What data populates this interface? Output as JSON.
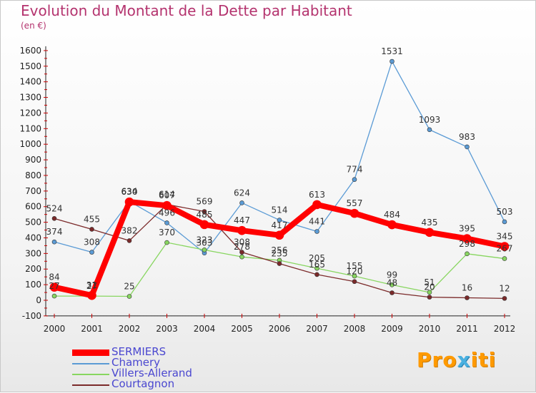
{
  "title": "Evolution du Montant de la Dette par Habitant",
  "subtitle": "(en €)",
  "logo": {
    "part1": "Pro",
    "x": "x",
    "part2": "iti"
  },
  "chart_data": {
    "type": "line",
    "title": "Evolution du Montant de la Dette par Habitant",
    "ylabel": "(en €)",
    "xlabel": "",
    "categories": [
      "2000",
      "2001",
      "2002",
      "2003",
      "2004",
      "2005",
      "2006",
      "2007",
      "2008",
      "2009",
      "2010",
      "2011",
      "2012"
    ],
    "ylim": [
      -100,
      1600
    ],
    "yticks": [
      -100,
      0,
      100,
      200,
      300,
      400,
      500,
      600,
      700,
      800,
      900,
      1000,
      1100,
      1200,
      1300,
      1400,
      1500,
      1600
    ],
    "grid": false,
    "legend_position": "bottom-left",
    "series": [
      {
        "name": "SERMIERS",
        "color": "#ff0000",
        "width": 8,
        "values": [
          84,
          31,
          630,
          607,
          485,
          447,
          417,
          613,
          557,
          484,
          435,
          395,
          345
        ],
        "labels": [
          "84",
          "31",
          "630",
          "607",
          "485",
          "447",
          "417",
          "613",
          "557",
          "484",
          "435",
          "395",
          "345"
        ]
      },
      {
        "name": "Chamery",
        "color": "#5b9bd5",
        "width": 1.3,
        "values": [
          374,
          308,
          634,
          496,
          303,
          624,
          514,
          441,
          774,
          1531,
          1093,
          983,
          503
        ],
        "labels": [
          "374",
          "308",
          "634",
          "496",
          "303",
          "624",
          "514",
          "441",
          "774",
          "1531",
          "1093",
          "983",
          "503"
        ]
      },
      {
        "name": "Villers-Allerand",
        "color": "#88d660",
        "width": 1.3,
        "values": [
          27,
          27,
          25,
          370,
          323,
          278,
          256,
          205,
          155,
          99,
          51,
          298,
          267
        ],
        "labels": [
          "27",
          "27",
          "25",
          "370",
          "323",
          "278",
          "256",
          "205",
          "155",
          "99",
          "51",
          "298",
          "267"
        ]
      },
      {
        "name": "Courtagnon",
        "color": "#7b2a2a",
        "width": 1.3,
        "values": [
          524,
          455,
          382,
          614,
          569,
          308,
          235,
          165,
          120,
          48,
          20,
          16,
          12
        ],
        "labels": [
          "524",
          "455",
          "382",
          "614",
          "569",
          "308",
          "235",
          "165",
          "120",
          "48",
          "20",
          "16",
          "12"
        ]
      }
    ]
  }
}
